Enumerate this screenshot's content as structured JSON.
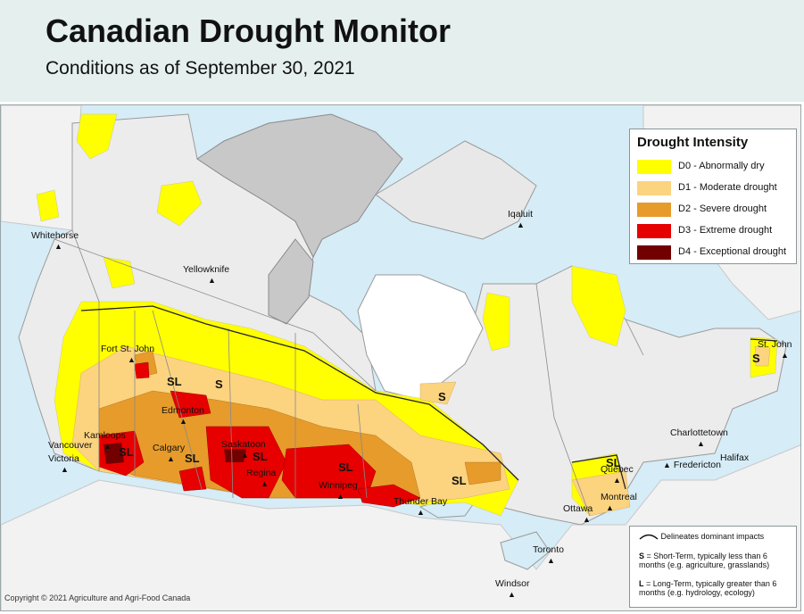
{
  "header": {
    "title": "Canadian Drought Monitor",
    "subtitle": "Conditions as of September 30, 2021"
  },
  "legend": {
    "title": "Drought Intensity",
    "items": [
      {
        "label": "D0 - Abnormally dry",
        "color": "#ffff00"
      },
      {
        "label": "D1 - Moderate drought",
        "color": "#fcd37f"
      },
      {
        "label": "D2 - Severe drought",
        "color": "#e69b2b"
      },
      {
        "label": "D3 - Extreme drought",
        "color": "#e60000"
      },
      {
        "label": "D4 - Exceptional drought",
        "color": "#730000"
      }
    ]
  },
  "impact_key": {
    "line_label": "Delineates dominant impacts",
    "short_term_code": "S",
    "short_term_text": "= Short-Term, typically less than 6 months (e.g. agriculture, grasslands)",
    "long_term_code": "L",
    "long_term_text": "= Long-Term, typically greater than 6 months (e.g. hydrology, ecology)"
  },
  "cities": [
    {
      "name": "Whitehorse"
    },
    {
      "name": "Yellowknife"
    },
    {
      "name": "Iqaluit"
    },
    {
      "name": "Fort St. John"
    },
    {
      "name": "Edmonton"
    },
    {
      "name": "Kamloops"
    },
    {
      "name": "Calgary"
    },
    {
      "name": "Saskatoon"
    },
    {
      "name": "Regina"
    },
    {
      "name": "Winnipeg"
    },
    {
      "name": "Vancouver"
    },
    {
      "name": "Victoria"
    },
    {
      "name": "Thunder Bay"
    },
    {
      "name": "Quebec"
    },
    {
      "name": "Montreal"
    },
    {
      "name": "Ottawa"
    },
    {
      "name": "Toronto"
    },
    {
      "name": "Windsor"
    },
    {
      "name": "Charlottetown"
    },
    {
      "name": "Halifax"
    },
    {
      "name": "Fredericton"
    },
    {
      "name": "St. John"
    }
  ],
  "impact_labels": [
    "SL",
    "SL",
    "SL",
    "SL",
    "SL",
    "SL",
    "SL",
    "S",
    "S",
    "S"
  ],
  "copyright": "Copyright © 2021 Agriculture and Agri-Food Canada"
}
